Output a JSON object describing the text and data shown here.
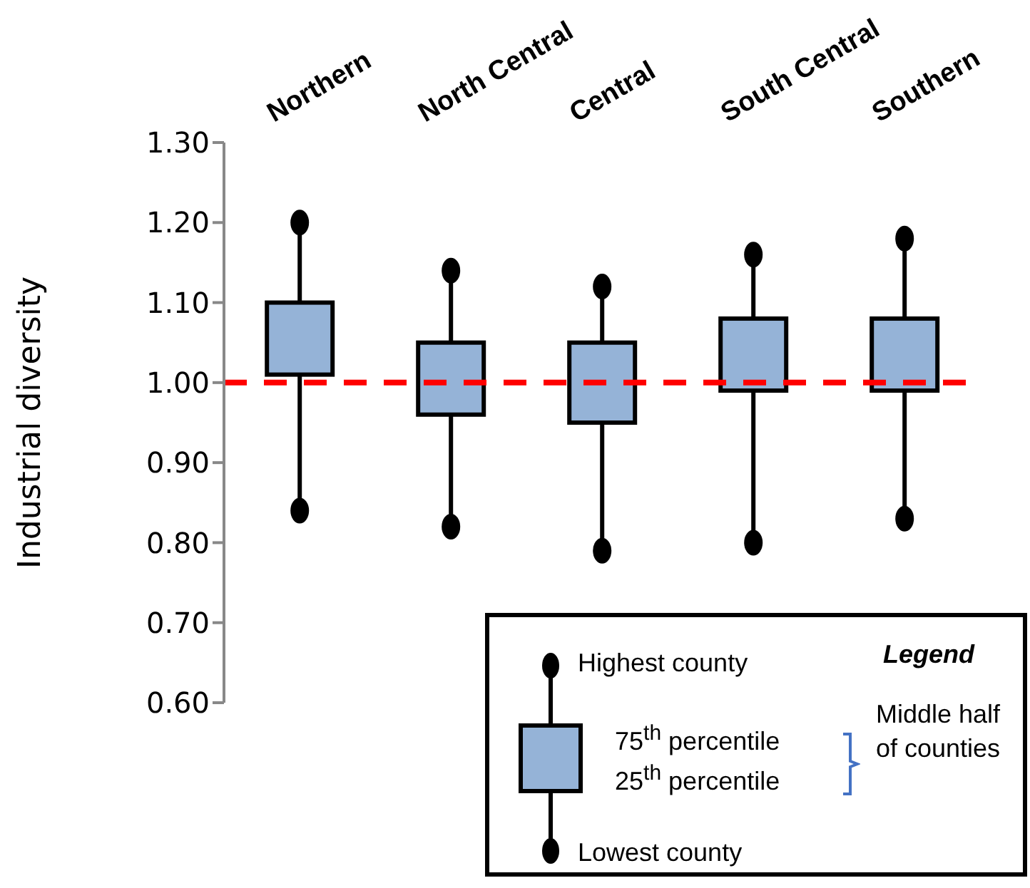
{
  "chart_data": {
    "type": "box",
    "ylabel": "Industrial diversity",
    "legend_title": "Legend",
    "categories": [
      "Northern",
      "North Central",
      "Central",
      "South Central",
      "Southern"
    ],
    "color": "#95b3d7",
    "boxes": [
      {
        "low": 0.84,
        "q1": 1.01,
        "q3": 1.1,
        "high": 1.2
      },
      {
        "low": 0.82,
        "q1": 0.96,
        "q3": 1.05,
        "high": 1.14
      },
      {
        "low": 0.79,
        "q1": 0.95,
        "q3": 1.05,
        "high": 1.12
      },
      {
        "low": 0.8,
        "q1": 0.99,
        "q3": 1.08,
        "high": 1.16
      },
      {
        "low": 0.83,
        "q1": 0.99,
        "q3": 1.08,
        "high": 1.18
      }
    ],
    "ylim": [
      0.6,
      1.3
    ],
    "yticks": [
      {
        "value": 0.6,
        "label": "0.60"
      },
      {
        "value": 0.7,
        "label": "0.70"
      },
      {
        "value": 0.8,
        "label": "0.80"
      },
      {
        "value": 0.9,
        "label": "0.90"
      },
      {
        "value": 1.0,
        "label": "1.00"
      },
      {
        "value": 1.1,
        "label": "1.10"
      },
      {
        "value": 1.2,
        "label": "1.20"
      },
      {
        "value": 1.3,
        "label": "1.30"
      }
    ],
    "grid": false,
    "ref_lines": [
      {
        "axis": "y",
        "value": 1.0,
        "color": "#ff0000",
        "line_style": "dashed"
      }
    ],
    "annotations": [
      "Highest county",
      "75$^{th}$ percentile",
      "25$^{th}$ percentile",
      "Middle half of counties",
      "Lowest county"
    ]
  }
}
